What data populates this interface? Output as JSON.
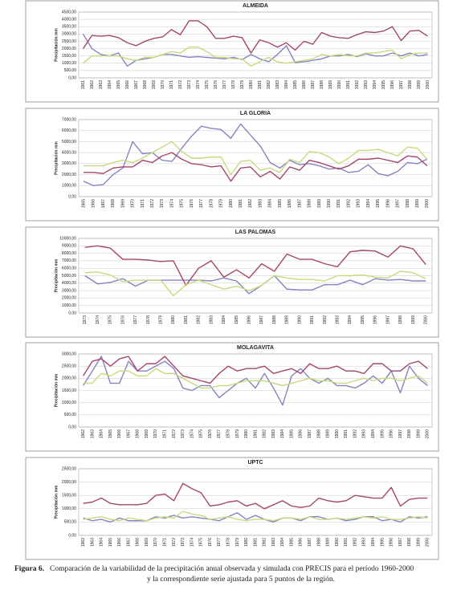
{
  "chart_data": [
    {
      "type": "line",
      "title": "ALMEIDA",
      "y_label": "Precipitación mm",
      "categories": [
        "1961",
        "1962",
        "1963",
        "1964",
        "1965",
        "1966",
        "1967",
        "1968",
        "1969",
        "1970",
        "1971",
        "1972",
        "1973",
        "1974",
        "1975",
        "1976",
        "1977",
        "1978",
        "1979",
        "1980",
        "1981",
        "1982",
        "1983",
        "1984",
        "1985",
        "1986",
        "1987",
        "1988",
        "1989",
        "1990",
        "1991",
        "1992",
        "1993",
        "1994",
        "1995",
        "1996",
        "1997",
        "1998",
        "1999",
        "2000"
      ],
      "series": [
        {
          "color": "#8484c4",
          "values": [
            3000,
            2000,
            1600,
            1500,
            1700,
            800,
            1200,
            1300,
            1400,
            1600,
            1600,
            1500,
            1400,
            1450,
            1400,
            1350,
            1300,
            1400,
            1250,
            1600,
            1300,
            1100,
            1600,
            2200,
            1050,
            1100,
            1200,
            1300,
            1500,
            1500,
            1600,
            1450,
            1650,
            1500,
            1500,
            1700,
            1500,
            1700,
            1500,
            1600
          ]
        },
        {
          "color": "#a4466e",
          "values": [
            2000,
            2900,
            2850,
            2900,
            2750,
            2400,
            2200,
            2500,
            2700,
            2800,
            3300,
            2950,
            3900,
            3900,
            3500,
            2700,
            2700,
            2850,
            2750,
            1700,
            2600,
            2400,
            2100,
            2400,
            1900,
            2500,
            2300,
            3100,
            2850,
            2750,
            2700,
            2950,
            3150,
            3100,
            3200,
            3500,
            2550,
            3200,
            3250,
            2850
          ]
        },
        {
          "color": "#c4dc7c",
          "values": [
            1000,
            1500,
            1500,
            1500,
            1500,
            1300,
            1200,
            1400,
            1400,
            1600,
            1800,
            1700,
            2100,
            2100,
            1800,
            1400,
            1400,
            1300,
            1300,
            800,
            1100,
            1400,
            1100,
            1000,
            1100,
            1200,
            1300,
            1600,
            1500,
            1600,
            1500,
            1500,
            1700,
            1700,
            1800,
            1900,
            1300,
            1600,
            1700,
            1700
          ]
        }
      ],
      "ylim": [
        0,
        4500
      ],
      "yticks": [
        {
          "value": 0,
          "label": "0,00"
        },
        {
          "value": 500,
          "label": "500,00"
        },
        {
          "value": 1000,
          "label": "1000,00"
        },
        {
          "value": 1500,
          "label": "1500,00"
        },
        {
          "value": 2000,
          "label": "2000,00"
        },
        {
          "value": 2500,
          "label": "2500,00"
        },
        {
          "value": 3000,
          "label": "3000,00"
        },
        {
          "value": 3500,
          "label": "3500,00"
        },
        {
          "value": 4000,
          "label": "4000,00"
        },
        {
          "value": 4500,
          "label": "4500,00"
        }
      ],
      "grid": true
    },
    {
      "type": "line",
      "title": "LA GLORIA",
      "y_label": "Precipitación mm",
      "categories": [
        "1965",
        "1966",
        "1967",
        "1968",
        "1969",
        "1970",
        "1971",
        "1972",
        "1973",
        "1974",
        "1975",
        "1976",
        "1977",
        "1978",
        "1979",
        "1980",
        "1981",
        "1982",
        "1983",
        "1984",
        "1985",
        "1986",
        "1987",
        "1988",
        "1989",
        "1990",
        "1991",
        "1992",
        "1993",
        "1994",
        "1995",
        "1996",
        "1997",
        "1998",
        "1999",
        "2000"
      ],
      "series": [
        {
          "color": "#8484c4",
          "values": [
            1400,
            1000,
            1100,
            2000,
            2600,
            5000,
            3900,
            4000,
            3300,
            3200,
            4400,
            5500,
            6400,
            6200,
            6100,
            5300,
            6600,
            5600,
            4600,
            3100,
            2600,
            3300,
            2900,
            3000,
            2800,
            2500,
            2600,
            2200,
            2300,
            2900,
            2100,
            1900,
            2300,
            3100,
            3000,
            3400
          ]
        },
        {
          "color": "#a4466e",
          "values": [
            2200,
            2200,
            2100,
            2600,
            2700,
            2700,
            3300,
            3100,
            3700,
            4000,
            3400,
            3000,
            2900,
            2700,
            2800,
            1400,
            2600,
            2700,
            1800,
            2300,
            1600,
            2700,
            2400,
            3300,
            3100,
            2800,
            2500,
            2800,
            3400,
            3400,
            3500,
            3300,
            3100,
            3700,
            3600,
            2800
          ]
        },
        {
          "color": "#c4dc7c",
          "values": [
            2800,
            2800,
            2800,
            3100,
            3300,
            3100,
            3500,
            4000,
            4500,
            5000,
            4100,
            3500,
            3500,
            3600,
            3600,
            2000,
            3200,
            3300,
            2400,
            2600,
            2200,
            3400,
            3100,
            4100,
            4000,
            3600,
            3000,
            3500,
            4200,
            4200,
            4300,
            4000,
            3700,
            4500,
            4400,
            3400
          ]
        }
      ],
      "ylim": [
        0,
        7000
      ],
      "yticks": [
        {
          "value": 0,
          "label": "0,00"
        },
        {
          "value": 1000,
          "label": "1000,00"
        },
        {
          "value": 2000,
          "label": "2000,00"
        },
        {
          "value": 3000,
          "label": "3000,00"
        },
        {
          "value": 4000,
          "label": "4000,00"
        },
        {
          "value": 5000,
          "label": "5000,00"
        },
        {
          "value": 6000,
          "label": "6000,00"
        },
        {
          "value": 7000,
          "label": "7000,00"
        }
      ],
      "grid": true
    },
    {
      "type": "line",
      "title": "LAS PALOMAS",
      "y_label": "Precipitación mm",
      "categories": [
        "1973",
        "1974",
        "1975",
        "1976",
        "1977",
        "1978",
        "1979",
        "1980",
        "1981",
        "1982",
        "1983",
        "1984",
        "1985",
        "1986",
        "1987",
        "1988",
        "1989",
        "1990",
        "1991",
        "1992",
        "1993",
        "1994",
        "1995",
        "1996",
        "1997",
        "1998",
        "1999",
        "2000"
      ],
      "series": [
        {
          "color": "#8484c4",
          "values": [
            5000,
            3900,
            4100,
            4600,
            3600,
            4400,
            4400,
            4400,
            4400,
            4400,
            4300,
            4700,
            4300,
            2600,
            3700,
            5000,
            3200,
            3100,
            3100,
            3800,
            3800,
            4400,
            3800,
            4600,
            4400,
            4500,
            4300,
            4300
          ]
        },
        {
          "color": "#a4466e",
          "values": [
            8800,
            9000,
            8700,
            7200,
            7200,
            7100,
            6900,
            7000,
            3700,
            6000,
            7000,
            4800,
            5800,
            4700,
            6600,
            5600,
            7900,
            7200,
            7200,
            6600,
            6200,
            8200,
            8400,
            8300,
            7500,
            9000,
            8600,
            6500
          ]
        },
        {
          "color": "#c4dc7c",
          "values": [
            5400,
            5500,
            5100,
            4200,
            4400,
            4400,
            4400,
            2300,
            3800,
            4400,
            3800,
            3200,
            3600,
            3000,
            3700,
            5000,
            4700,
            4500,
            4500,
            4300,
            5000,
            5000,
            5100,
            4800,
            4700,
            5600,
            5400,
            4600
          ]
        }
      ],
      "ylim": [
        0,
        10000
      ],
      "yticks": [
        {
          "value": 0,
          "label": "0,00"
        },
        {
          "value": 1000,
          "label": "1000,00"
        },
        {
          "value": 2000,
          "label": "2000,00"
        },
        {
          "value": 3000,
          "label": "3000,00"
        },
        {
          "value": 4000,
          "label": "4000,00"
        },
        {
          "value": 5000,
          "label": "5000,00"
        },
        {
          "value": 6000,
          "label": "6000,00"
        },
        {
          "value": 7000,
          "label": "7000,00"
        },
        {
          "value": 8000,
          "label": "8000,00"
        },
        {
          "value": 9000,
          "label": "9000,00"
        },
        {
          "value": 10000,
          "label": "10000,00"
        }
      ],
      "grid": true
    },
    {
      "type": "line",
      "title": "MOLAGAVITA",
      "y_label": "Precipitación mm",
      "categories": [
        "1962",
        "1963",
        "1964",
        "1965",
        "1966",
        "1967",
        "1968",
        "1969",
        "1970",
        "1971",
        "1972",
        "1973",
        "1974",
        "1975",
        "1976",
        "1977",
        "1978",
        "1979",
        "1980",
        "1981",
        "1982",
        "1983",
        "1984",
        "1985",
        "1986",
        "1987",
        "1988",
        "1989",
        "1990",
        "1991",
        "1992",
        "1993",
        "1994",
        "1995",
        "1996",
        "1997",
        "1998",
        "1999",
        "2000"
      ],
      "series": [
        {
          "color": "#8484c4",
          "values": [
            1700,
            2300,
            2900,
            1800,
            1800,
            2700,
            2300,
            2300,
            2500,
            2700,
            2400,
            1600,
            1500,
            1700,
            1700,
            1200,
            1500,
            1800,
            2000,
            1600,
            2200,
            1600,
            900,
            2100,
            2400,
            2000,
            1800,
            2000,
            1700,
            1700,
            1600,
            1800,
            2100,
            1800,
            2300,
            1400,
            2500,
            2000,
            1700
          ]
        },
        {
          "color": "#a4466e",
          "values": [
            2100,
            2700,
            2800,
            2500,
            2800,
            2900,
            2300,
            2600,
            2600,
            2900,
            2500,
            2100,
            2000,
            1900,
            1800,
            2200,
            2500,
            2300,
            2400,
            2400,
            2500,
            2200,
            2300,
            2400,
            2200,
            2600,
            2400,
            2400,
            2500,
            2300,
            2300,
            2200,
            2600,
            2600,
            2300,
            2300,
            2600,
            2700,
            2400
          ]
        },
        {
          "color": "#c4dc7c",
          "values": [
            1800,
            1800,
            2200,
            2100,
            2300,
            2300,
            2100,
            2100,
            2400,
            2200,
            2200,
            2000,
            1800,
            1600,
            1600,
            1700,
            1700,
            1800,
            1900,
            1900,
            1900,
            1800,
            1700,
            1800,
            1900,
            2000,
            1900,
            1900,
            1800,
            1800,
            1900,
            2000,
            1900,
            2000,
            2000,
            1900,
            2000,
            2100,
            1800
          ]
        }
      ],
      "ylim": [
        0,
        3000
      ],
      "yticks": [
        {
          "value": 0,
          "label": "0,00"
        },
        {
          "value": 500,
          "label": "500,00"
        },
        {
          "value": 1000,
          "label": "1000,00"
        },
        {
          "value": 1500,
          "label": "1500,00"
        },
        {
          "value": 2000,
          "label": "2000,00"
        },
        {
          "value": 2500,
          "label": "2500,00"
        },
        {
          "value": 3000,
          "label": "3000,00"
        }
      ],
      "grid": true
    },
    {
      "type": "line",
      "title": "UPTC",
      "y_label": "Precipitación mm",
      "categories": [
        "1962",
        "1963",
        "1964",
        "1965",
        "1966",
        "1967",
        "1968",
        "1969",
        "1970",
        "1971",
        "1972",
        "1973",
        "1974",
        "1975",
        "1976",
        "1977",
        "1978",
        "1979",
        "1980",
        "1981",
        "1982",
        "1983",
        "1984",
        "1985",
        "1986",
        "1987",
        "1988",
        "1989",
        "1990",
        "1991",
        "1992",
        "1993",
        "1994",
        "1995",
        "1996",
        "1997",
        "1998",
        "1999",
        "2000"
      ],
      "series": [
        {
          "color": "#8484c4",
          "values": [
            650,
            550,
            600,
            500,
            650,
            550,
            550,
            550,
            700,
            650,
            750,
            650,
            700,
            650,
            600,
            550,
            700,
            850,
            600,
            750,
            600,
            500,
            650,
            650,
            550,
            700,
            700,
            600,
            650,
            550,
            600,
            700,
            700,
            550,
            600,
            500,
            700,
            650,
            700
          ]
        },
        {
          "color": "#a4466e",
          "values": [
            1200,
            1250,
            1400,
            1200,
            1150,
            1150,
            1150,
            1200,
            1500,
            1550,
            1300,
            1950,
            1750,
            1600,
            1100,
            1150,
            1250,
            1300,
            1100,
            1200,
            1000,
            1150,
            1300,
            1100,
            1050,
            1100,
            1400,
            1300,
            1250,
            1300,
            1500,
            1450,
            1400,
            1400,
            1800,
            1100,
            1350,
            1400,
            1400
          ]
        },
        {
          "color": "#c4dc7c",
          "values": [
            600,
            650,
            700,
            600,
            550,
            650,
            600,
            550,
            650,
            700,
            650,
            900,
            800,
            750,
            600,
            650,
            700,
            600,
            550,
            600,
            600,
            550,
            650,
            650,
            600,
            700,
            600,
            600,
            650,
            600,
            650,
            700,
            650,
            700,
            600,
            600,
            650,
            700,
            650
          ]
        }
      ],
      "ylim": [
        0,
        2500
      ],
      "yticks": [
        {
          "value": 0,
          "label": "0,00"
        },
        {
          "value": 500,
          "label": "500,00"
        },
        {
          "value": 1000,
          "label": "1000,00"
        },
        {
          "value": 1500,
          "label": "1500,00"
        },
        {
          "value": 2000,
          "label": "2000,00"
        },
        {
          "value": 2500,
          "label": "2500,00"
        }
      ],
      "grid": true
    }
  ],
  "caption": {
    "label": "Figura 6.",
    "lines": [
      "Comparación de la variabilidad de la precipitación  anual observada y simulada con PRECIS para el período 1960-2000",
      "y la correspondiente serie ajustada para 5 puntos de la región."
    ]
  }
}
